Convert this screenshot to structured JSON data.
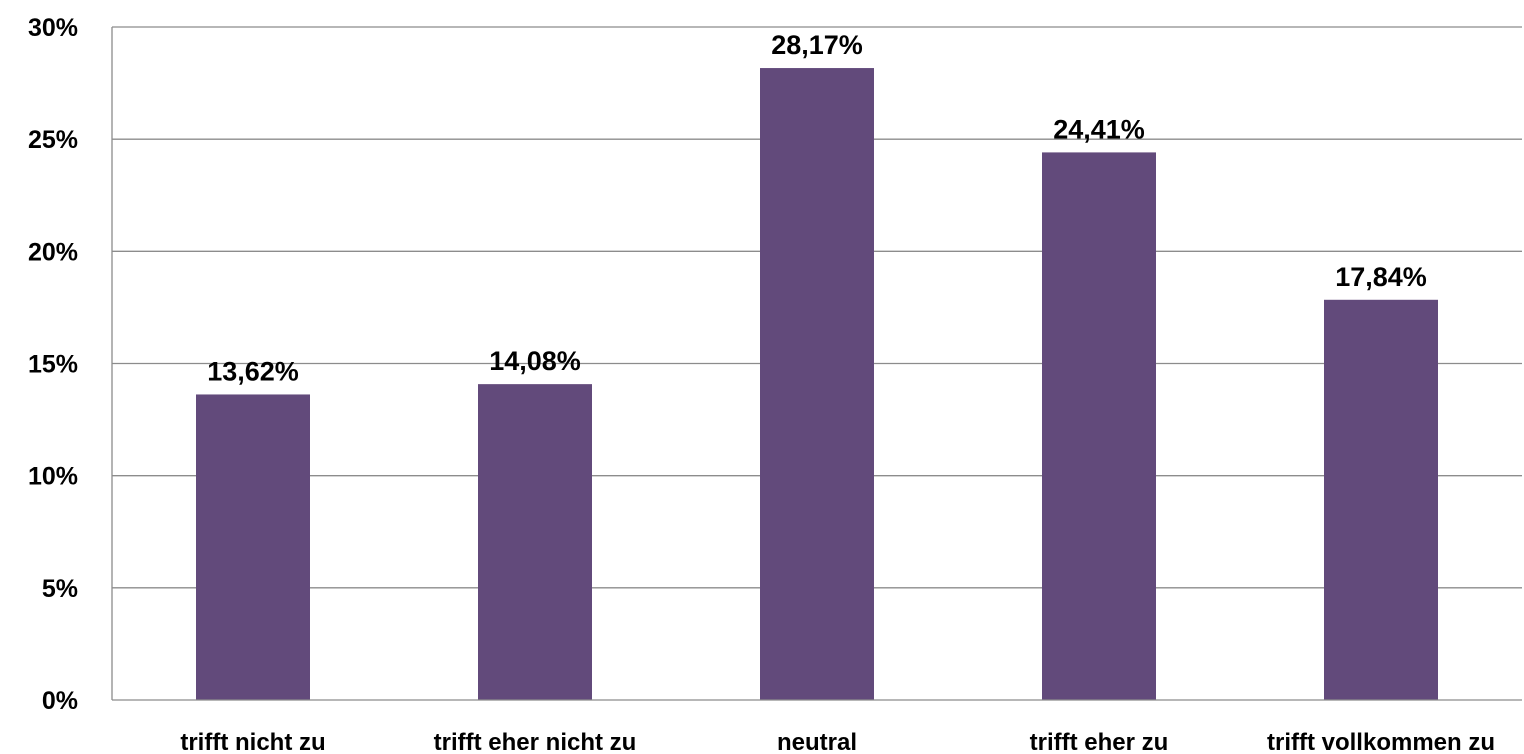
{
  "chart_data": {
    "type": "bar",
    "categories": [
      "trifft nicht zu",
      "trifft eher nicht zu",
      "neutral",
      "trifft eher zu",
      "trifft vollkommen zu"
    ],
    "values": [
      13.62,
      14.08,
      28.17,
      24.41,
      17.84
    ],
    "data_labels": [
      "13,62%",
      "14,08%",
      "28,17%",
      "24,41%",
      "17,84%"
    ],
    "y_ticks": [
      {
        "value": 0,
        "label": "0%"
      },
      {
        "value": 5,
        "label": "5%"
      },
      {
        "value": 10,
        "label": "10%"
      },
      {
        "value": 15,
        "label": "15%"
      },
      {
        "value": 20,
        "label": "20%"
      },
      {
        "value": 25,
        "label": "25%"
      },
      {
        "value": 30,
        "label": "30%"
      }
    ],
    "ylim": [
      0,
      30
    ],
    "grid": true,
    "legend": "none",
    "title": "",
    "xlabel": "",
    "ylabel": "",
    "bar_color": "#624a7b"
  }
}
